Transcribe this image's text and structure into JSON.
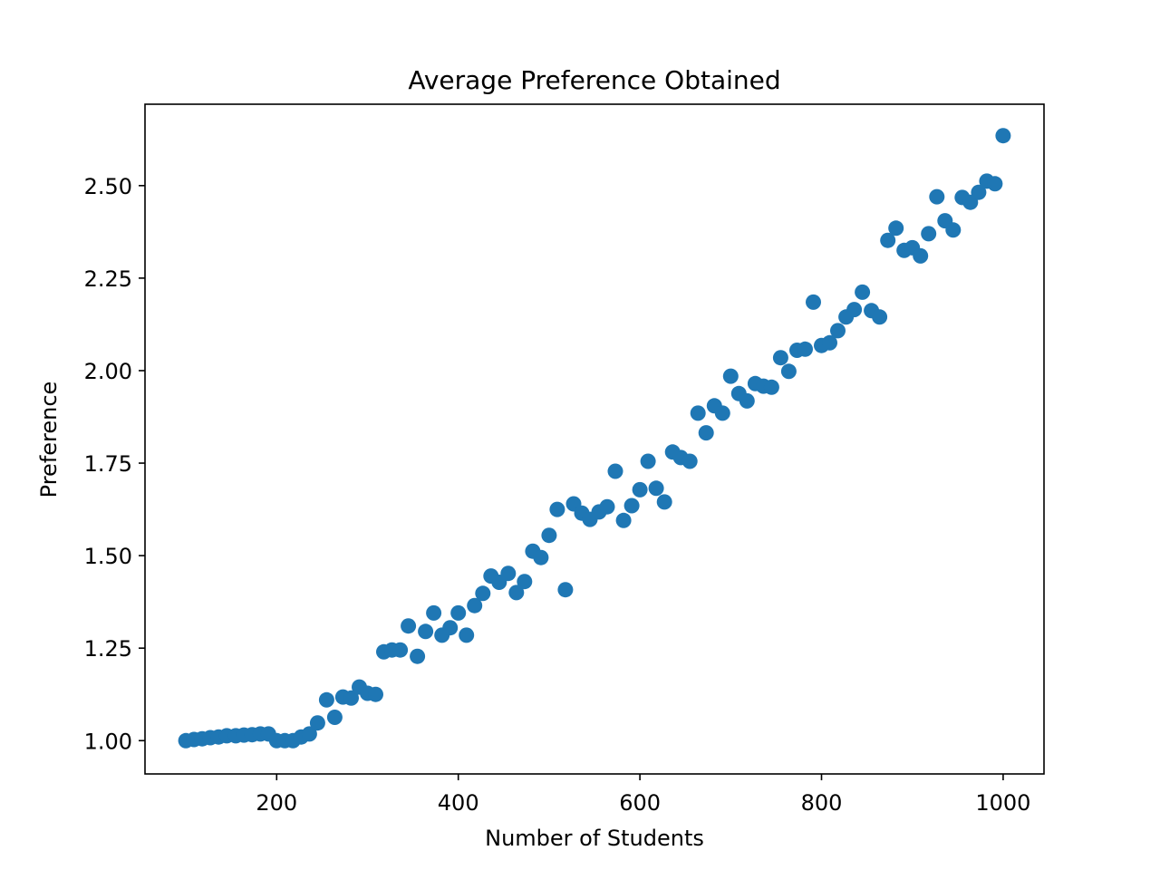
{
  "chart_data": {
    "type": "scatter",
    "title": "Average Preference Obtained",
    "xlabel": "Number of Students",
    "ylabel": "Preference",
    "xlim": [
      55,
      1045
    ],
    "ylim": [
      0.91,
      2.72
    ],
    "xticks": [
      200,
      400,
      600,
      800,
      1000
    ],
    "xtick_labels": [
      "200",
      "400",
      "600",
      "800",
      "1000"
    ],
    "yticks": [
      1.0,
      1.25,
      1.5,
      1.75,
      2.0,
      2.25,
      2.5
    ],
    "ytick_labels": [
      "1.00",
      "1.25",
      "1.50",
      "1.75",
      "2.00",
      "2.25",
      "2.50"
    ],
    "grid": false,
    "color": "#1f77b4",
    "x": [
      100,
      109,
      118,
      127,
      136,
      145,
      155,
      164,
      173,
      182,
      191,
      200,
      209,
      218,
      227,
      236,
      245,
      255,
      264,
      273,
      282,
      291,
      300,
      309,
      318,
      327,
      336,
      345,
      355,
      364,
      373,
      382,
      391,
      400,
      409,
      418,
      427,
      436,
      445,
      455,
      464,
      473,
      482,
      491,
      500,
      509,
      518,
      527,
      536,
      545,
      555,
      564,
      573,
      582,
      591,
      600,
      609,
      618,
      627,
      636,
      645,
      655,
      664,
      673,
      682,
      691,
      700,
      709,
      718,
      727,
      736,
      745,
      755,
      764,
      773,
      782,
      791,
      800,
      809,
      818,
      827,
      836,
      845,
      855,
      864,
      873,
      882,
      891,
      900,
      909,
      918,
      927,
      936,
      945,
      955,
      964,
      973,
      982,
      991,
      1000
    ],
    "y": [
      1.0,
      1.003,
      1.005,
      1.008,
      1.01,
      1.013,
      1.013,
      1.015,
      1.016,
      1.018,
      1.018,
      1.0,
      1.0,
      1.0,
      1.01,
      1.018,
      1.048,
      1.11,
      1.063,
      1.118,
      1.115,
      1.145,
      1.128,
      1.125,
      1.24,
      1.245,
      1.245,
      1.31,
      1.228,
      1.295,
      1.345,
      1.285,
      1.305,
      1.345,
      1.285,
      1.365,
      1.398,
      1.445,
      1.428,
      1.452,
      1.4,
      1.43,
      1.512,
      1.495,
      1.555,
      1.625,
      1.408,
      1.64,
      1.615,
      1.598,
      1.618,
      1.632,
      1.728,
      1.595,
      1.635,
      1.678,
      1.755,
      1.682,
      1.645,
      1.78,
      1.765,
      1.755,
      1.885,
      1.832,
      1.905,
      1.885,
      1.985,
      1.938,
      1.918,
      1.965,
      1.958,
      1.955,
      2.035,
      1.998,
      2.055,
      2.058,
      2.185,
      2.068,
      2.075,
      2.108,
      2.145,
      2.165,
      2.212,
      2.162,
      2.145,
      2.352,
      2.385,
      2.325,
      2.332,
      2.31,
      2.37,
      2.47,
      2.405,
      2.38,
      2.468,
      2.455,
      2.482,
      2.512,
      2.505,
      2.635
    ]
  }
}
